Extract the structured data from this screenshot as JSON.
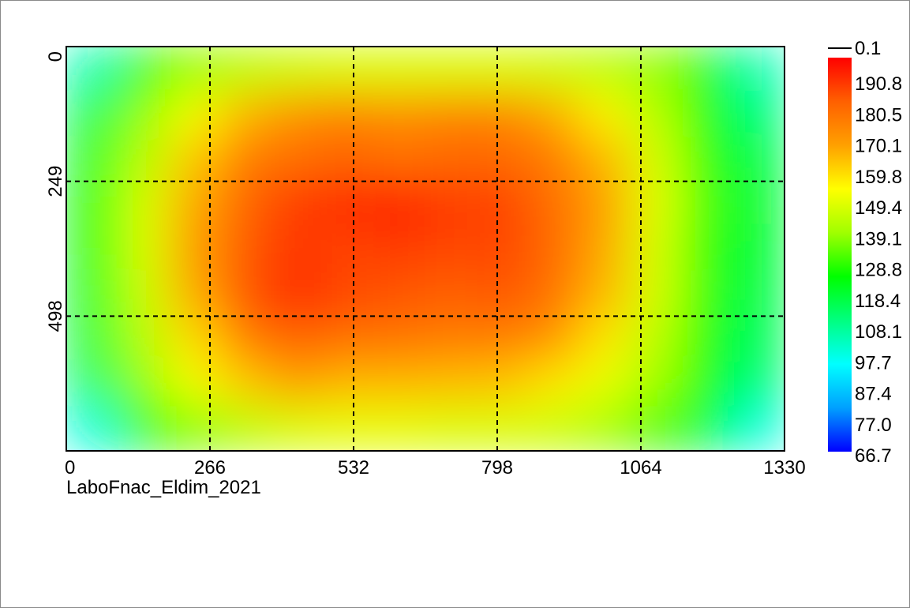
{
  "chart_data": {
    "type": "heatmap",
    "caption": "LaboFnac_Eldim_2021",
    "x_ticks": [
      "0",
      "266",
      "532",
      "798",
      "1064",
      "1330"
    ],
    "y_ticks": [
      "0",
      "249",
      "498"
    ],
    "xlim": [
      0,
      1330
    ],
    "ylim": [
      0,
      747
    ],
    "grid": true,
    "grid_style": "dashed",
    "colorbar": {
      "placement": "right",
      "marker_label": "0.1",
      "labels": [
        "190.8",
        "180.5",
        "170.1",
        "159.8",
        "149.4",
        "139.1",
        "128.8",
        "118.4",
        "108.1",
        "97.7",
        "87.4",
        "77.0",
        "66.7"
      ],
      "min": 66.7,
      "max": 201.1,
      "colormap": [
        "#0000ff",
        "#00a0ff",
        "#00ffff",
        "#00ff80",
        "#00ff00",
        "#a0ff00",
        "#ffff00",
        "#ffa000",
        "#ff6000",
        "#ff0000"
      ]
    },
    "grid_values": [
      [
        105,
        130,
        140,
        145,
        148,
        150,
        150,
        150,
        150,
        148,
        145,
        140,
        130,
        105
      ],
      [
        118,
        140,
        155,
        168,
        175,
        178,
        176,
        178,
        178,
        170,
        158,
        145,
        128,
        112
      ],
      [
        122,
        145,
        165,
        180,
        183,
        185,
        182,
        184,
        184,
        180,
        168,
        150,
        130,
        118
      ],
      [
        124,
        150,
        170,
        185,
        192,
        195,
        198,
        192,
        191,
        183,
        172,
        152,
        132,
        120
      ],
      [
        124,
        150,
        172,
        187,
        193,
        190,
        192,
        190,
        190,
        184,
        170,
        150,
        130,
        120
      ],
      [
        122,
        148,
        170,
        188,
        195,
        190,
        188,
        186,
        188,
        182,
        168,
        150,
        130,
        118
      ],
      [
        120,
        145,
        162,
        180,
        186,
        183,
        182,
        180,
        180,
        175,
        160,
        146,
        128,
        116
      ],
      [
        115,
        140,
        155,
        165,
        172,
        168,
        168,
        167,
        166,
        160,
        153,
        142,
        126,
        112
      ],
      [
        100,
        125,
        138,
        145,
        150,
        152,
        152,
        150,
        150,
        148,
        142,
        133,
        120,
        100
      ]
    ]
  }
}
